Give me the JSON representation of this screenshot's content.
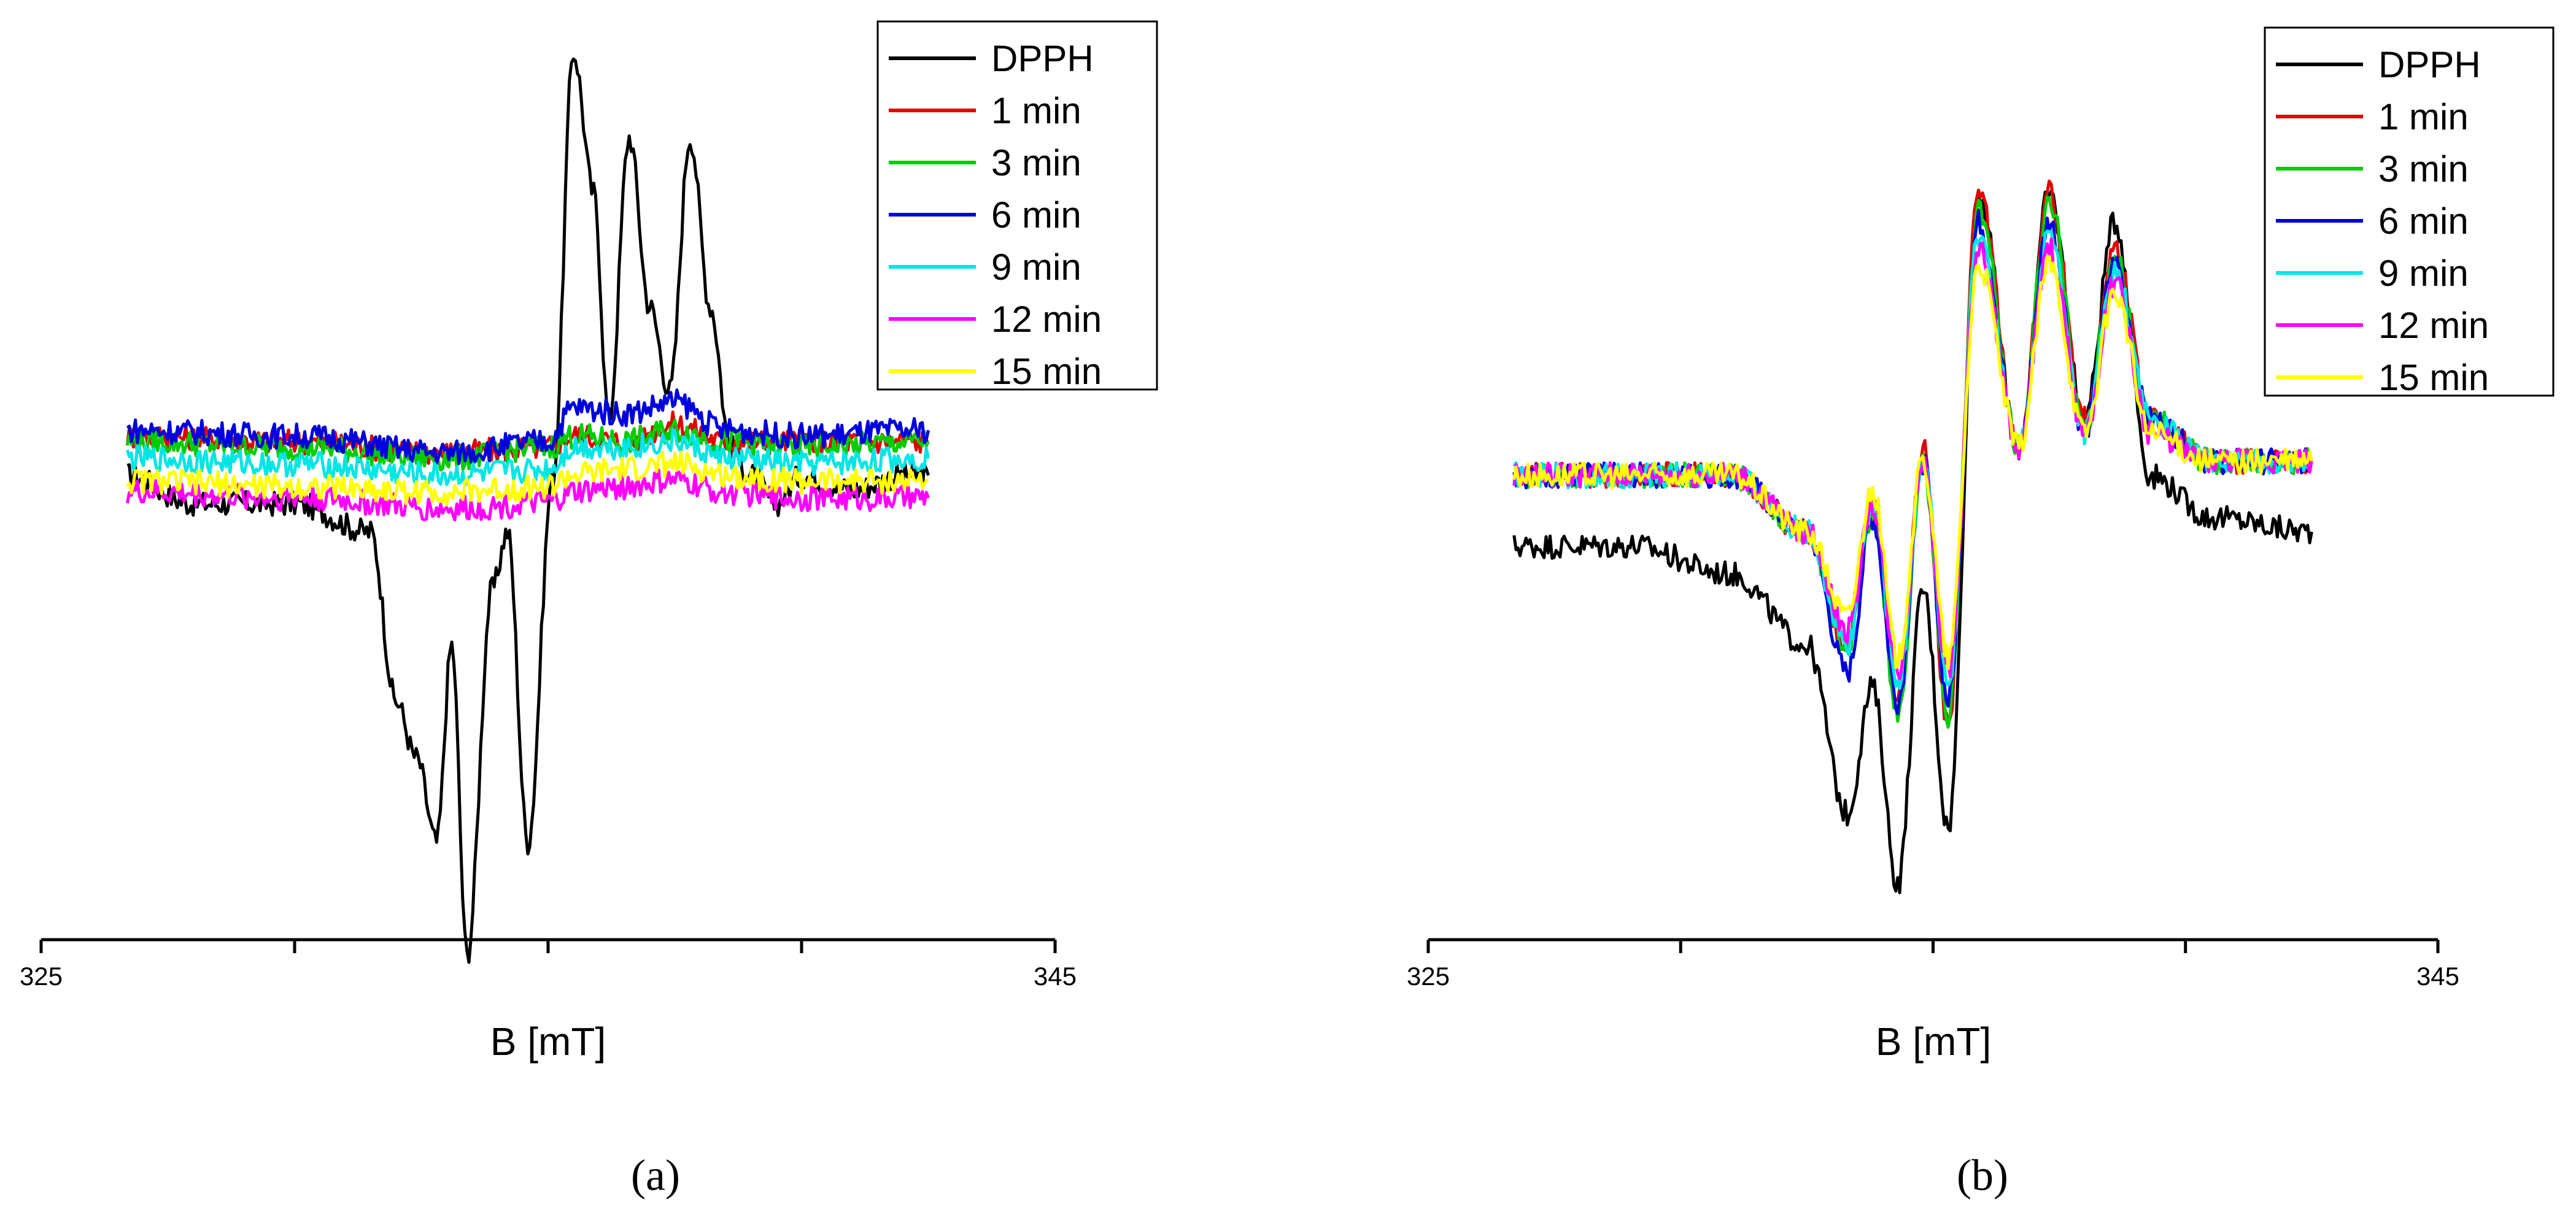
{
  "chart_data": [
    {
      "type": "line",
      "panel_label": "(a)",
      "xlabel": "B [mT]",
      "x_range": [
        325,
        345
      ],
      "x_tick_labels": [
        "325",
        "345"
      ],
      "x_ticks": [
        325,
        330,
        335,
        340,
        345
      ],
      "y_range": [
        -1.25,
        1.25
      ],
      "grid": false,
      "legend_position": "top-right",
      "series": [
        {
          "name": "DPPH",
          "color": "#000000",
          "x": [
            326.7,
            328,
            330,
            331.5,
            332,
            332.4,
            332.8,
            333.1,
            333.4,
            333.9,
            334.2,
            334.6,
            335.1,
            335.5,
            335.9,
            336.2,
            336.6,
            337.0,
            337.4,
            337.8,
            338.2,
            338.6,
            339.0,
            339.5,
            340.0,
            341.0,
            342.0,
            342.5
          ],
          "y": [
            0.0,
            -0.1,
            -0.1,
            -0.2,
            -0.8,
            -1.0,
            -1.3,
            -0.6,
            -1.7,
            -0.4,
            -0.2,
            -1.3,
            0.0,
            1.5,
            1.0,
            0.2,
            1.2,
            0.6,
            0.3,
            1.2,
            0.6,
            0.1,
            0.0,
            -0.1,
            0.0,
            -0.05,
            0.0,
            0.0
          ]
        },
        {
          "name": "1 min",
          "color": "#e00000",
          "x": [
            326.7,
            330,
            333,
            335,
            335.5,
            336.5,
            337.5,
            338.5,
            340,
            342.5
          ],
          "y": [
            0.14,
            0.12,
            0.08,
            0.1,
            0.14,
            0.12,
            0.18,
            0.12,
            0.12,
            0.12
          ]
        },
        {
          "name": "3 min",
          "color": "#00cc00",
          "x": [
            326.7,
            330,
            333,
            335,
            335.5,
            336.5,
            337.5,
            338.5,
            340,
            342.5
          ],
          "y": [
            0.12,
            0.1,
            0.06,
            0.1,
            0.14,
            0.12,
            0.16,
            0.12,
            0.1,
            0.12
          ]
        },
        {
          "name": "6 min",
          "color": "#0000dd",
          "x": [
            326.7,
            330,
            333,
            335,
            335.5,
            336.5,
            337.5,
            338.5,
            340,
            342.5
          ],
          "y": [
            0.16,
            0.14,
            0.08,
            0.12,
            0.24,
            0.22,
            0.26,
            0.16,
            0.14,
            0.16
          ]
        },
        {
          "name": "9 min",
          "color": "#00e5e5",
          "x": [
            326.7,
            330,
            333,
            335,
            335.5,
            336.5,
            337.5,
            338.5,
            340,
            342.5
          ],
          "y": [
            0.06,
            0.04,
            0.0,
            0.02,
            0.1,
            0.1,
            0.12,
            0.06,
            0.04,
            0.06
          ]
        },
        {
          "name": "12 min",
          "color": "#ff00ff",
          "x": [
            326.7,
            330,
            333,
            335,
            335.5,
            336.5,
            337.5,
            338.5,
            340,
            342.5
          ],
          "y": [
            -0.06,
            -0.08,
            -0.12,
            -0.1,
            -0.06,
            -0.04,
            -0.02,
            -0.06,
            -0.08,
            -0.08
          ]
        },
        {
          "name": "15 min",
          "color": "#ffff00",
          "x": [
            326.7,
            330,
            333,
            335,
            335.5,
            336.5,
            337.5,
            338.5,
            340,
            342.5
          ],
          "y": [
            -0.02,
            -0.04,
            -0.06,
            -0.04,
            0.0,
            0.02,
            0.04,
            0.0,
            -0.02,
            -0.02
          ]
        }
      ]
    },
    {
      "type": "line",
      "panel_label": "(b)",
      "xlabel": "B [mT]",
      "x_range": [
        325,
        345
      ],
      "x_tick_labels": [
        "325",
        "345"
      ],
      "x_ticks": [
        325,
        330,
        335,
        340,
        345
      ],
      "y_range": [
        -1.25,
        1.25
      ],
      "grid": false,
      "legend_position": "top-right",
      "series": [
        {
          "name": "DPPH",
          "color": "#000000",
          "x": [
            326.7,
            329,
            331,
            332.5,
            333.3,
            333.8,
            334.3,
            334.8,
            335.3,
            335.9,
            336.7,
            337.3,
            338.0,
            338.6,
            339.3,
            340.5,
            342.5
          ],
          "y": [
            -0.25,
            -0.25,
            -0.35,
            -0.6,
            -1.2,
            -0.75,
            -1.45,
            -0.4,
            -1.25,
            1.0,
            0.1,
            1.0,
            0.2,
            0.9,
            0.0,
            -0.15,
            -0.2
          ]
        },
        {
          "name": "1 min",
          "color": "#e00000",
          "x": [
            326.7,
            329,
            331,
            332.5,
            333.3,
            333.8,
            334.3,
            334.8,
            335.3,
            335.9,
            336.7,
            337.3,
            338.0,
            338.6,
            339.3,
            340.5,
            342.5
          ],
          "y": [
            0.0,
            0.0,
            0.0,
            -0.2,
            -0.6,
            -0.1,
            -0.8,
            0.1,
            -0.9,
            1.0,
            0.1,
            1.0,
            0.2,
            0.8,
            0.2,
            0.05,
            0.05
          ]
        },
        {
          "name": "3 min",
          "color": "#00cc00",
          "x": [
            326.7,
            329,
            331,
            332.5,
            333.3,
            333.8,
            334.3,
            334.8,
            335.3,
            335.9,
            336.7,
            337.3,
            338.0,
            338.6,
            339.3,
            340.5,
            342.5
          ],
          "y": [
            0.0,
            0.0,
            0.0,
            -0.2,
            -0.6,
            -0.15,
            -0.85,
            0.05,
            -0.85,
            0.95,
            0.1,
            0.98,
            0.15,
            0.78,
            0.2,
            0.05,
            0.05
          ]
        },
        {
          "name": "6 min",
          "color": "#0000dd",
          "x": [
            326.7,
            329,
            331,
            332.5,
            333.3,
            333.8,
            334.3,
            334.8,
            335.3,
            335.9,
            336.7,
            337.3,
            338.0,
            338.6,
            339.3,
            340.5,
            342.5
          ],
          "y": [
            0.0,
            0.0,
            0.0,
            -0.2,
            -0.7,
            -0.15,
            -0.8,
            0.05,
            -0.8,
            0.9,
            0.1,
            0.9,
            0.15,
            0.75,
            0.2,
            0.05,
            0.05
          ]
        },
        {
          "name": "9 min",
          "color": "#00e5e5",
          "x": [
            326.7,
            329,
            331,
            332.5,
            333.3,
            333.8,
            334.3,
            334.8,
            335.3,
            335.9,
            336.7,
            337.3,
            338.0,
            338.6,
            339.3,
            340.5,
            342.5
          ],
          "y": [
            0.0,
            0.0,
            0.0,
            -0.2,
            -0.6,
            -0.1,
            -0.75,
            0.05,
            -0.75,
            0.85,
            0.1,
            0.85,
            0.15,
            0.72,
            0.2,
            0.05,
            0.05
          ]
        },
        {
          "name": "12 min",
          "color": "#ff00ff",
          "x": [
            326.7,
            329,
            331,
            332.5,
            333.3,
            333.8,
            334.3,
            334.8,
            335.3,
            335.9,
            336.7,
            337.3,
            338.0,
            338.6,
            339.3,
            340.5,
            342.5
          ],
          "y": [
            0.0,
            0.0,
            0.0,
            -0.2,
            -0.55,
            -0.1,
            -0.7,
            0.05,
            -0.7,
            0.8,
            0.1,
            0.8,
            0.15,
            0.68,
            0.15,
            0.05,
            0.05
          ]
        },
        {
          "name": "15 min",
          "color": "#ffff00",
          "x": [
            326.7,
            329,
            331,
            332.5,
            333.3,
            333.8,
            334.3,
            334.8,
            335.3,
            335.9,
            336.7,
            337.3,
            338.0,
            338.6,
            339.3,
            340.5,
            342.5
          ],
          "y": [
            0.0,
            0.0,
            0.0,
            -0.2,
            -0.5,
            -0.05,
            -0.65,
            0.05,
            -0.65,
            0.75,
            0.1,
            0.75,
            0.15,
            0.65,
            0.15,
            0.05,
            0.05
          ]
        }
      ]
    }
  ]
}
